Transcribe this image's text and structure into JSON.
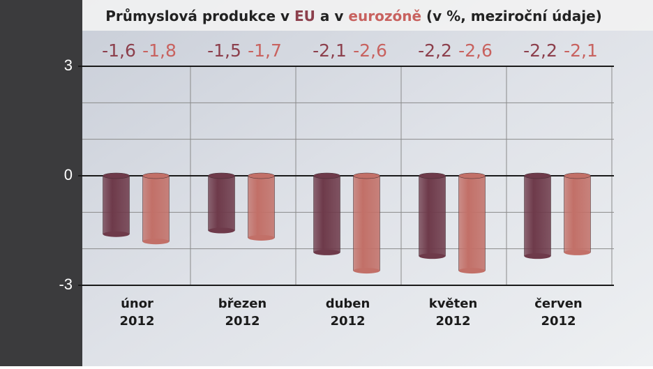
{
  "chart_data": {
    "type": "bar",
    "title_parts": [
      "Průmyslová produkce v",
      "a v",
      "(v %, meziroční údaje)"
    ],
    "categories": [
      [
        "únor",
        "2012"
      ],
      [
        "březen",
        "2012"
      ],
      [
        "duben",
        "2012"
      ],
      [
        "květen",
        "2012"
      ],
      [
        "červen",
        "2012"
      ]
    ],
    "series": [
      {
        "name": "EU",
        "color": "#6e3a4a",
        "label_color": "#8c3f4c",
        "values": [
          -1.6,
          -1.5,
          -2.1,
          -2.2,
          -2.2
        ],
        "value_labels": [
          "-1,6",
          "-1,5",
          "-2,1",
          "-2,2",
          "-2,2"
        ]
      },
      {
        "name": "eurozóně",
        "color": "#c27068",
        "label_color": "#c8625f",
        "values": [
          -1.8,
          -1.7,
          -2.6,
          -2.6,
          -2.1
        ],
        "value_labels": [
          "-1,8",
          "-1,7",
          "-2,6",
          "-2,6",
          "-2,1"
        ]
      }
    ],
    "ylim": [
      -3,
      3
    ],
    "yticks": [
      3,
      0,
      -3
    ],
    "minor_yticks": [
      2,
      1,
      -1,
      -2
    ],
    "grid": true
  }
}
